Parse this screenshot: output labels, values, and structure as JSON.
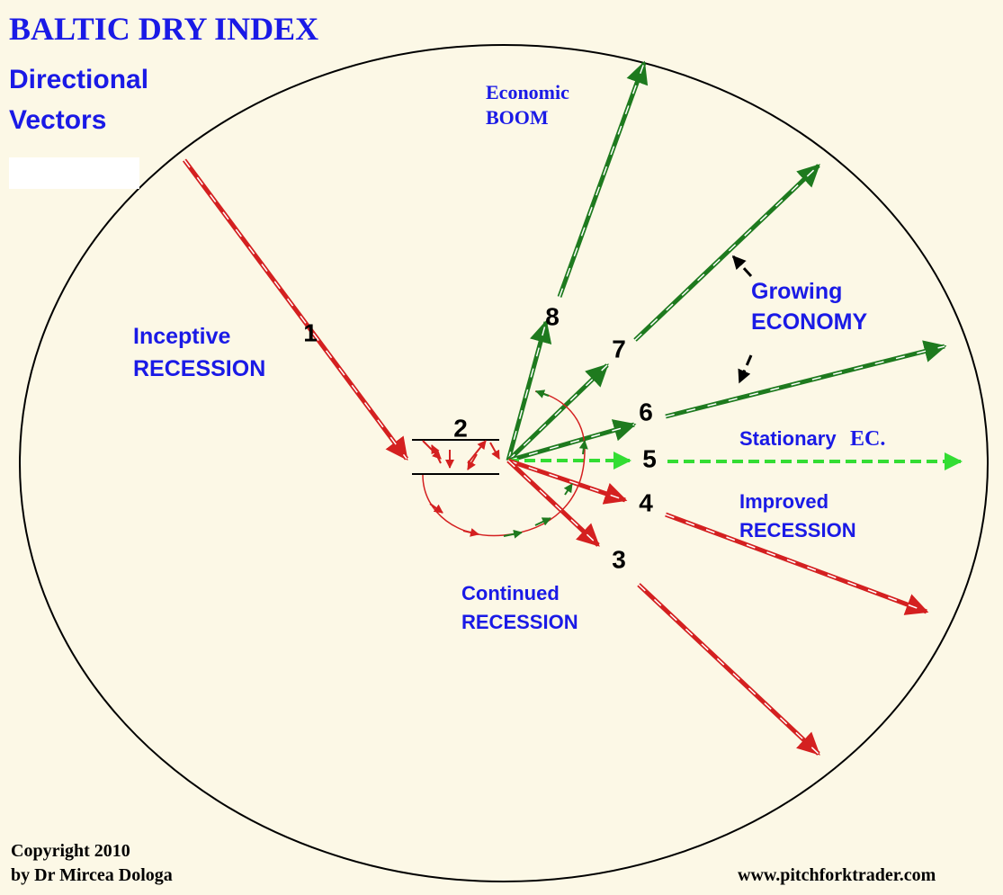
{
  "header": {
    "title": "BALTIC DRY INDEX",
    "subtitle": [
      "Directional",
      "Vectors"
    ]
  },
  "vectors": [
    "1",
    "2",
    "3",
    "4",
    "5",
    "6",
    "7",
    "8"
  ],
  "labels": {
    "boom": [
      "Economic",
      "BOOM"
    ],
    "growing": [
      "Growing",
      "ECONOMY"
    ],
    "inceptive": [
      "Inceptive",
      "RECESSION"
    ],
    "stationary": [
      "Stationary",
      "EC."
    ],
    "improved": [
      "Improved",
      "RECESSION"
    ],
    "continued": [
      "Continued",
      "RECESSION"
    ]
  },
  "footer": {
    "copyright": [
      "Copyright 2010",
      "by Dr Mircea Dologa"
    ],
    "website": "www.pitchforktrader.com"
  }
}
